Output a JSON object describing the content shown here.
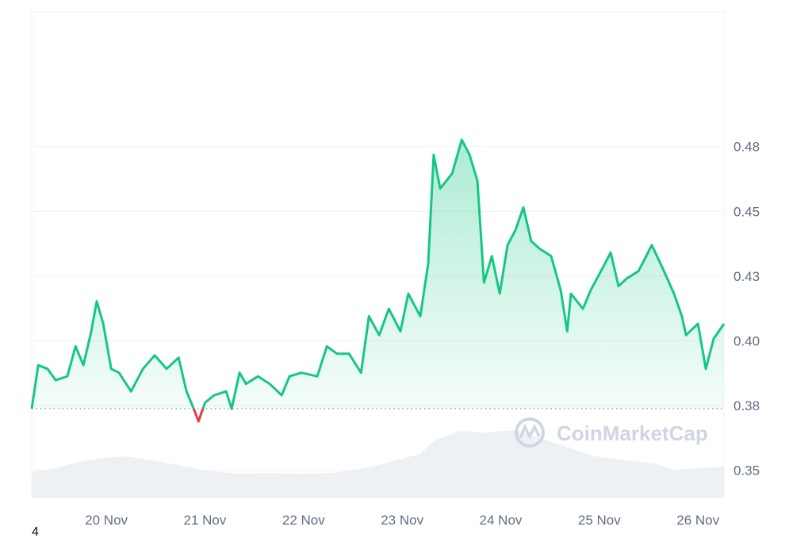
{
  "watermark": "CoinMarketCap",
  "page_number": "4",
  "chart_data": {
    "type": "line",
    "title": "",
    "xlabel": "",
    "ylabel": "",
    "x_range": [
      "19 Nov 05:50",
      "26 Nov 06:20"
    ],
    "ylim": [
      0.3395,
      0.527
    ],
    "grid": "horizontal",
    "y_axis_side": "right",
    "y_ticks": [
      {
        "value": 0.475,
        "label": "0.48"
      },
      {
        "value": 0.45,
        "label": "0.45"
      },
      {
        "value": 0.425,
        "label": "0.43"
      },
      {
        "value": 0.4,
        "label": "0.40"
      },
      {
        "value": 0.375,
        "label": "0.38"
      },
      {
        "value": 0.35,
        "label": "0.35"
      }
    ],
    "x_ticks": [
      {
        "value": "20 Nov 00:00",
        "label": "20 Nov"
      },
      {
        "value": "21 Nov 00:00",
        "label": "21 Nov"
      },
      {
        "value": "22 Nov 00:00",
        "label": "22 Nov"
      },
      {
        "value": "23 Nov 00:00",
        "label": "23 Nov"
      },
      {
        "value": "24 Nov 00:00",
        "label": "24 Nov"
      },
      {
        "value": "25 Nov 00:00",
        "label": "25 Nov"
      },
      {
        "value": "26 Nov 00:00",
        "label": "26 Nov"
      }
    ],
    "baseline": 0.3738,
    "colors": {
      "up": "#16c784",
      "down": "#ea3943",
      "volume": "#eef1f4",
      "grid": "#eff2f5"
    },
    "series": [
      {
        "points": [
          [
            "19 Nov 05:50",
            0.3738
          ],
          [
            "19 Nov 07:25",
            0.3906
          ],
          [
            "19 Nov 09:40",
            0.3892
          ],
          [
            "19 Nov 11:40",
            0.3848
          ],
          [
            "19 Nov 14:30",
            0.3863
          ],
          [
            "19 Nov 16:30",
            0.3979
          ],
          [
            "19 Nov 18:25",
            0.3906
          ],
          [
            "19 Nov 20:20",
            0.4037
          ],
          [
            "19 Nov 21:40",
            0.4153
          ],
          [
            "19 Nov 23:15",
            0.4066
          ],
          [
            "20 Nov 01:10",
            0.3892
          ],
          [
            "20 Nov 03:05",
            0.3877
          ],
          [
            "20 Nov 06:00",
            0.3805
          ],
          [
            "20 Nov 08:55",
            0.3892
          ],
          [
            "20 Nov 11:45",
            0.3944
          ],
          [
            "20 Nov 14:40",
            0.3892
          ],
          [
            "20 Nov 17:35",
            0.3935
          ],
          [
            "20 Nov 19:30",
            0.3805
          ],
          [
            "20 Nov 21:25",
            0.3732
          ],
          [
            "20 Nov 22:25",
            0.3689
          ],
          [
            "21 Nov 00:00",
            0.3761
          ],
          [
            "21 Nov 02:15",
            0.379
          ],
          [
            "21 Nov 05:10",
            0.3805
          ],
          [
            "21 Nov 06:30",
            0.3738
          ],
          [
            "21 Nov 08:25",
            0.3877
          ],
          [
            "21 Nov 10:00",
            0.3834
          ],
          [
            "21 Nov 12:55",
            0.3863
          ],
          [
            "21 Nov 15:45",
            0.3834
          ],
          [
            "21 Nov 18:40",
            0.379
          ],
          [
            "21 Nov 20:35",
            0.3863
          ],
          [
            "21 Nov 23:30",
            0.3877
          ],
          [
            "22 Nov 03:20",
            0.3863
          ],
          [
            "22 Nov 05:40",
            0.3979
          ],
          [
            "22 Nov 08:10",
            0.395
          ],
          [
            "22 Nov 11:05",
            0.395
          ],
          [
            "22 Nov 14:00",
            0.3877
          ],
          [
            "22 Nov 15:55",
            0.4095
          ],
          [
            "22 Nov 18:25",
            0.4022
          ],
          [
            "22 Nov 20:45",
            0.4124
          ],
          [
            "22 Nov 23:35",
            0.4037
          ],
          [
            "23 Nov 01:30",
            0.4182
          ],
          [
            "23 Nov 04:25",
            0.4095
          ],
          [
            "23 Nov 06:20",
            0.4298
          ],
          [
            "23 Nov 07:40",
            0.4718
          ],
          [
            "23 Nov 09:15",
            0.4588
          ],
          [
            "23 Nov 12:10",
            0.4646
          ],
          [
            "23 Nov 14:30",
            0.4776
          ],
          [
            "23 Nov 16:25",
            0.4718
          ],
          [
            "23 Nov 18:20",
            0.4617
          ],
          [
            "23 Nov 19:55",
            0.4225
          ],
          [
            "23 Nov 21:50",
            0.4327
          ],
          [
            "23 Nov 23:45",
            0.4182
          ],
          [
            "24 Nov 01:40",
            0.437
          ],
          [
            "24 Nov 03:35",
            0.4428
          ],
          [
            "24 Nov 05:30",
            0.4515
          ],
          [
            "24 Nov 07:25",
            0.4385
          ],
          [
            "24 Nov 09:25",
            0.4356
          ],
          [
            "24 Nov 12:15",
            0.4327
          ],
          [
            "24 Nov 14:35",
            0.4196
          ],
          [
            "24 Nov 16:10",
            0.4037
          ],
          [
            "24 Nov 17:05",
            0.4182
          ],
          [
            "24 Nov 20:00",
            0.4124
          ],
          [
            "24 Nov 21:55",
            0.4196
          ],
          [
            "25 Nov 00:50",
            0.4283
          ],
          [
            "25 Nov 02:45",
            0.4341
          ],
          [
            "25 Nov 04:40",
            0.4211
          ],
          [
            "25 Nov 06:35",
            0.424
          ],
          [
            "25 Nov 09:30",
            0.4269
          ],
          [
            "25 Nov 11:25",
            0.4327
          ],
          [
            "25 Nov 12:45",
            0.437
          ],
          [
            "25 Nov 15:20",
            0.4283
          ],
          [
            "25 Nov 18:10",
            0.4182
          ],
          [
            "25 Nov 20:05",
            0.4095
          ],
          [
            "25 Nov 21:05",
            0.4022
          ],
          [
            "26 Nov 00:00",
            0.4066
          ],
          [
            "26 Nov 01:55",
            0.3892
          ],
          [
            "26 Nov 03:50",
            0.4008
          ],
          [
            "26 Nov 06:20",
            0.4066
          ]
        ]
      }
    ]
  }
}
